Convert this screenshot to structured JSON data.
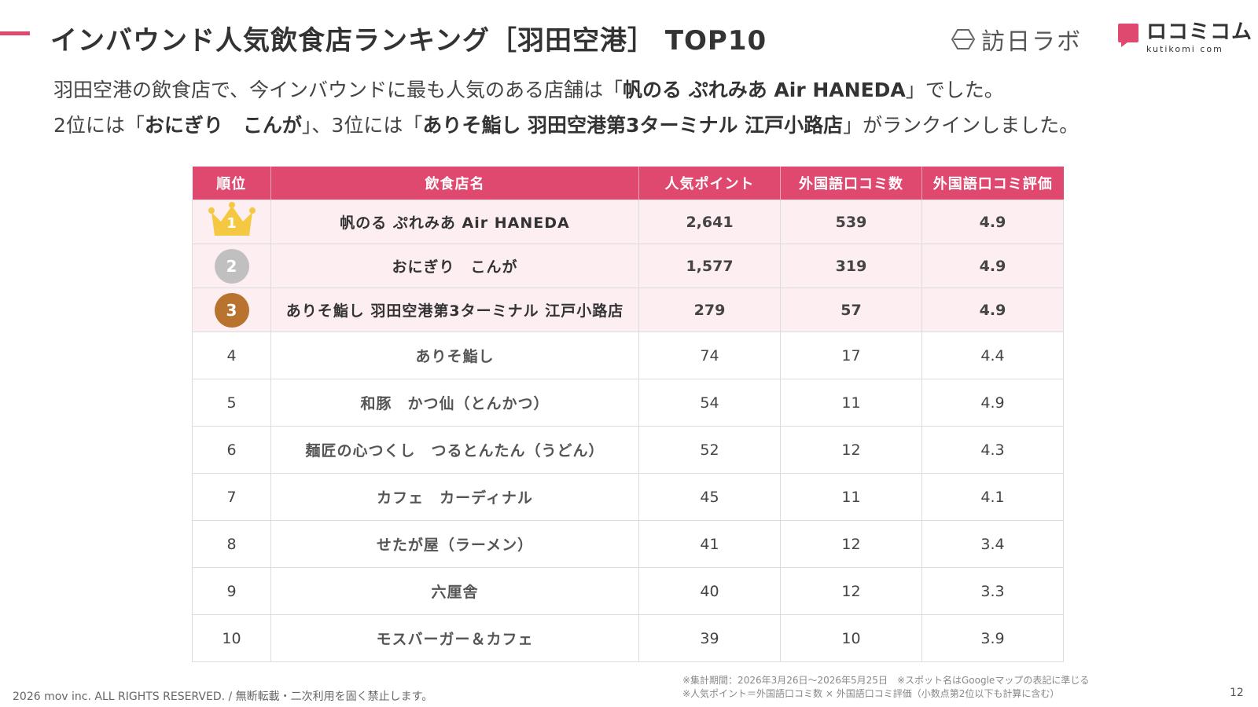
{
  "header": {
    "title": "インバウンド人気飲食店ランキング［羽田空港］ TOP10",
    "logo_houjin": "訪日ラボ",
    "logo_kuchikomi": "ロコミコム",
    "logo_kuchikomi_sub": "kutikomi com"
  },
  "intro": {
    "line1_a": "羽田空港の飲食店で、今インバウンドに最も人気のある店舗は「",
    "line1_bold": "帆のる ぷれみあ Air HANEDA",
    "line1_b": "」でした。",
    "line2_a": "2位には「",
    "line2_bold1": "おにぎり　こんが",
    "line2_b": "」、3位には「",
    "line2_bold2": "ありそ鮨し 羽田空港第3ターミナル 江戸小路店",
    "line2_c": "」がランクインしました。"
  },
  "table": {
    "headers": [
      "順位",
      "飲食店名",
      "人気ポイント",
      "外国語口コミ数",
      "外国語口コミ評価"
    ],
    "rows": [
      {
        "rank": "1",
        "name": "帆のる ぷれみあ Air HANEDA",
        "points": "2,641",
        "reviews": "539",
        "rating": "4.9"
      },
      {
        "rank": "2",
        "name": "おにぎり　こんが",
        "points": "1,577",
        "reviews": "319",
        "rating": "4.9"
      },
      {
        "rank": "3",
        "name": "ありそ鮨し 羽田空港第3ターミナル 江戸小路店",
        "points": "279",
        "reviews": "57",
        "rating": "4.9"
      },
      {
        "rank": "4",
        "name": "ありそ鮨し",
        "points": "74",
        "reviews": "17",
        "rating": "4.4"
      },
      {
        "rank": "5",
        "name": "和豚　かつ仙（とんかつ）",
        "points": "54",
        "reviews": "11",
        "rating": "4.9"
      },
      {
        "rank": "6",
        "name": "麺匠の心つくし　つるとんたん（うどん）",
        "points": "52",
        "reviews": "12",
        "rating": "4.3"
      },
      {
        "rank": "7",
        "name": "カフェ　カーディナル",
        "points": "45",
        "reviews": "11",
        "rating": "4.1"
      },
      {
        "rank": "8",
        "name": "せたが屋（ラーメン）",
        "points": "41",
        "reviews": "12",
        "rating": "3.4"
      },
      {
        "rank": "9",
        "name": "六厘舎",
        "points": "40",
        "reviews": "12",
        "rating": "3.3"
      },
      {
        "rank": "10",
        "name": "モスバーガー＆カフェ",
        "points": "39",
        "reviews": "10",
        "rating": "3.9"
      }
    ]
  },
  "footer": {
    "copyright": "2026 mov inc. ALL RIGHTS RESERVED. / 無断転載・二次利用を固く禁止します。",
    "note1": "※集計期間：2026年3月26日〜2026年5月25日　※スポット名はGoogleマップの表記に準じる",
    "note2": "※人気ポイント＝外国語口コミ数 × 外国語口コミ評価（小数点第2位以下も計算に含む）",
    "page_number": "12"
  },
  "colors": {
    "accent": "#e0496f",
    "top_row_bg": "#fdeef2",
    "gold": "#f5c842",
    "silver": "#c0c0c0",
    "bronze": "#b8742e"
  }
}
